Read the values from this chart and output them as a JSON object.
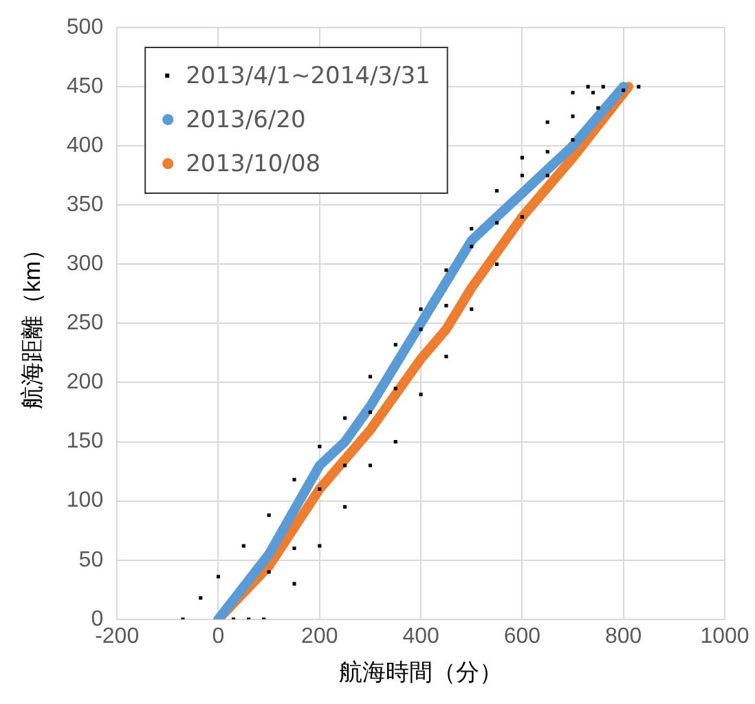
{
  "chart_data": {
    "type": "scatter",
    "xlabel": "航海時間（分）",
    "ylabel": "航海距離（km）",
    "xlim": [
      -200,
      1000
    ],
    "xticks": [
      -200,
      0,
      200,
      400,
      600,
      800,
      1000
    ],
    "ylim": [
      0,
      500
    ],
    "yticks": [
      0,
      50,
      100,
      150,
      200,
      250,
      300,
      350,
      400,
      450,
      500
    ],
    "grid": true,
    "legend": "top left",
    "series": [
      {
        "name": "2013/4/1~2014/3/31",
        "marker": "square",
        "color": "#000000",
        "x": [
          -70,
          -35,
          0,
          50,
          100,
          150,
          200,
          250,
          300,
          350,
          400,
          450,
          500,
          550,
          600,
          650,
          700,
          730,
          30,
          100,
          200,
          300,
          400,
          500,
          600,
          700,
          760,
          90,
          150,
          200,
          250,
          300,
          350,
          400,
          450,
          500,
          550,
          600,
          650,
          700,
          750,
          800,
          830,
          60,
          150,
          250,
          350,
          450,
          550,
          650,
          740
        ],
        "values": [
          0,
          18,
          36,
          62,
          88,
          118,
          146,
          170,
          205,
          232,
          262,
          295,
          330,
          362,
          390,
          420,
          445,
          450,
          0,
          40,
          110,
          175,
          245,
          315,
          375,
          425,
          450,
          0,
          30,
          62,
          95,
          130,
          150,
          190,
          222,
          262,
          300,
          340,
          375,
          405,
          432,
          447,
          450,
          0,
          60,
          130,
          195,
          265,
          335,
          395,
          445
        ]
      },
      {
        "name": "2013/6/20",
        "type": "line",
        "marker": "none",
        "color": "#5b9bd5",
        "x": [
          0,
          100,
          200,
          250,
          300,
          400,
          500,
          550,
          700,
          800
        ],
        "values": [
          0,
          55,
          130,
          150,
          180,
          250,
          320,
          340,
          400,
          450
        ]
      },
      {
        "name": "2013/10/08",
        "type": "line",
        "marker": "none",
        "color": "#ed7d31",
        "x": [
          0,
          100,
          200,
          300,
          400,
          450,
          500,
          600,
          700,
          810
        ],
        "values": [
          0,
          45,
          110,
          160,
          220,
          245,
          280,
          340,
          390,
          450
        ]
      }
    ]
  }
}
